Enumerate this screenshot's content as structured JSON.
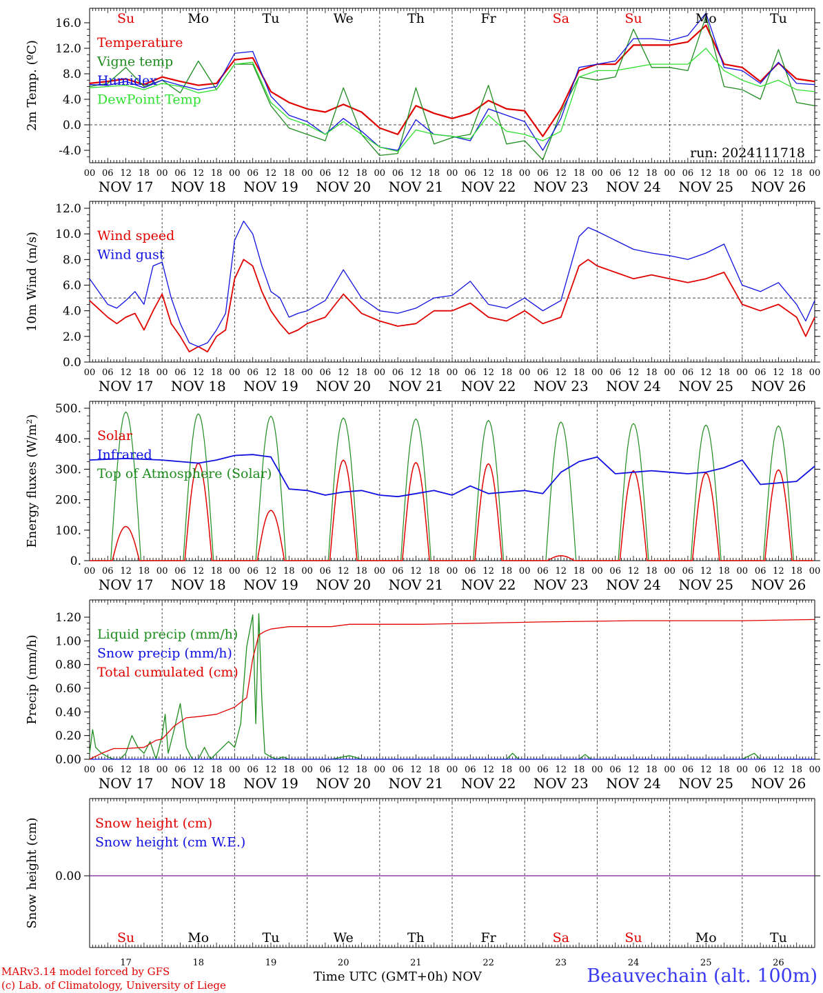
{
  "run_label": "run: 2024111718",
  "weekdays": [
    "Su",
    "Mo",
    "Tu",
    "We",
    "Th",
    "Fr",
    "Sa",
    "Su",
    "Mo",
    "Tu"
  ],
  "weekday_colors": [
    "#e00000",
    "#000000",
    "#000000",
    "#000000",
    "#000000",
    "#000000",
    "#e00000",
    "#e00000",
    "#000000",
    "#000000"
  ],
  "date_labels": [
    "NOV 17",
    "NOV 18",
    "NOV 19",
    "NOV 20",
    "NOV 21",
    "NOV 22",
    "NOV 23",
    "NOV 24",
    "NOV 25",
    "NOV 26"
  ],
  "day_numbers": [
    "17",
    "18",
    "19",
    "20",
    "21",
    "22",
    "23",
    "24",
    "25",
    "26"
  ],
  "hour_ticks": [
    "00",
    "06",
    "12",
    "18"
  ],
  "footer": {
    "credit_line1": "MARv3.14 model forced by GFS",
    "credit_line2": "(c) Lab. of Climatology, University of Liege",
    "x_title": "Time UTC (GMT+0h) NOV",
    "station": "Beauvechain (alt. 100m)"
  },
  "colors": {
    "red": "#e00000",
    "green": "#1e8c1e",
    "blue": "#1010e0",
    "lightgreen": "#30e030",
    "purple": "#7a1a9a"
  },
  "chart_data": [
    {
      "id": "temp",
      "type": "line",
      "ylabel": "2m Temp. (ºC)",
      "ylim": [
        -6,
        18
      ],
      "yticks": [
        -4,
        0,
        4,
        8,
        12,
        16
      ],
      "ytick_labels": [
        "-4.0",
        "0.0",
        "4.0",
        "8.0",
        "12.0",
        "16.0"
      ],
      "dashed_y": 0,
      "series": [
        {
          "name": "Temperature",
          "color": "#e00000",
          "x": [
            0,
            6,
            12,
            18,
            24,
            30,
            36,
            42,
            48,
            54,
            60,
            66,
            72,
            78,
            84,
            90,
            96,
            102,
            108,
            114,
            120,
            126,
            132,
            138,
            144,
            150,
            156,
            162,
            168,
            174,
            180,
            186,
            192,
            198,
            204,
            210,
            216,
            222,
            228,
            234,
            240
          ],
          "y": [
            6.5,
            6.8,
            7.2,
            6.3,
            7.5,
            6.8,
            6.2,
            6.5,
            10.2,
            10.5,
            5.2,
            3.5,
            2.5,
            2.0,
            3.2,
            2.0,
            -0.5,
            -1.5,
            3.0,
            1.8,
            1.0,
            1.8,
            3.8,
            2.5,
            2.2,
            -1.8,
            2.5,
            8.5,
            9.5,
            9.5,
            12.5,
            12.5,
            12.5,
            13.0,
            15.6,
            9.5,
            9.0,
            6.8,
            9.7,
            7.2,
            6.8
          ]
        },
        {
          "name": "Vigne temp",
          "color": "#1e8c1e",
          "x": [
            0,
            6,
            12,
            18,
            24,
            30,
            36,
            42,
            48,
            54,
            60,
            66,
            72,
            78,
            84,
            90,
            96,
            102,
            108,
            114,
            120,
            126,
            132,
            138,
            144,
            150,
            156,
            162,
            168,
            174,
            180,
            186,
            192,
            198,
            204,
            210,
            216,
            222,
            228,
            234,
            240
          ],
          "y": [
            6.0,
            6.5,
            9.0,
            6.0,
            7.0,
            5.0,
            10.0,
            5.5,
            9.5,
            9.5,
            3.0,
            -0.5,
            -1.5,
            -2.5,
            5.8,
            -1.5,
            -4.8,
            -4.5,
            5.8,
            -3.0,
            -2.0,
            -1.5,
            6.2,
            -3.0,
            -2.5,
            -5.5,
            2.0,
            7.5,
            7.0,
            7.5,
            15.0,
            9.0,
            9.0,
            8.5,
            17.0,
            6.0,
            5.5,
            4.0,
            11.8,
            3.5,
            3.0
          ]
        },
        {
          "name": "Humidex",
          "color": "#1010e0",
          "x": [
            0,
            6,
            12,
            18,
            24,
            30,
            36,
            42,
            48,
            54,
            60,
            66,
            72,
            78,
            84,
            90,
            96,
            102,
            108,
            114,
            120,
            126,
            132,
            138,
            144,
            150,
            156,
            162,
            168,
            174,
            180,
            186,
            192,
            198,
            204,
            210,
            216,
            222,
            228,
            234,
            240
          ],
          "y": [
            6.3,
            6.2,
            6.8,
            5.8,
            7.0,
            6.2,
            5.5,
            6.0,
            11.2,
            11.5,
            4.5,
            1.5,
            0.5,
            -1.5,
            1.0,
            -1.0,
            -3.5,
            -4.0,
            0.8,
            -1.5,
            -1.8,
            -2.5,
            2.5,
            1.5,
            0.5,
            -4.0,
            1.0,
            9.0,
            9.5,
            10.0,
            13.5,
            13.5,
            13.2,
            14.0,
            17.5,
            9.0,
            8.5,
            6.5,
            9.8,
            6.5,
            6.3
          ]
        },
        {
          "name": "DewPoint Temp",
          "color": "#30e030",
          "x": [
            0,
            6,
            12,
            18,
            24,
            30,
            36,
            42,
            48,
            54,
            60,
            66,
            72,
            78,
            84,
            90,
            96,
            102,
            108,
            114,
            120,
            126,
            132,
            138,
            144,
            150,
            156,
            162,
            168,
            174,
            180,
            186,
            192,
            198,
            204,
            210,
            216,
            222,
            228,
            234,
            240
          ],
          "y": [
            5.8,
            6.0,
            6.2,
            5.5,
            6.5,
            6.0,
            5.0,
            5.5,
            9.5,
            9.8,
            3.5,
            1.0,
            0.0,
            -1.5,
            0.5,
            -1.5,
            -3.5,
            -4.2,
            -0.8,
            -1.5,
            -1.8,
            -2.2,
            1.5,
            -1.0,
            -1.5,
            -2.5,
            -1.0,
            7.5,
            8.5,
            8.5,
            9.0,
            9.5,
            9.5,
            9.5,
            12.0,
            8.5,
            7.0,
            6.0,
            7.0,
            5.5,
            5.2
          ]
        }
      ],
      "legend": [
        "Temperature",
        "Vigne temp",
        "Humidex",
        "DewPoint Temp"
      ],
      "legend_colors": [
        "#e00000",
        "#1e8c1e",
        "#1010e0",
        "#30e030"
      ]
    },
    {
      "id": "wind",
      "type": "line",
      "ylabel": "10m Wind (m/s)",
      "ylim": [
        0,
        12
      ],
      "yticks": [
        0,
        2,
        4,
        6,
        8,
        10,
        12
      ],
      "ytick_labels": [
        "0.0",
        "2.0",
        "4.0",
        "6.0",
        "8.0",
        "10.0",
        "12.0"
      ],
      "dashed_y": 5,
      "series": [
        {
          "name": "Wind speed",
          "color": "#e00000",
          "x": [
            0,
            6,
            9,
            12,
            15,
            18,
            21,
            24,
            27,
            30,
            33,
            36,
            39,
            42,
            45,
            48,
            51,
            54,
            57,
            60,
            63,
            66,
            69,
            72,
            78,
            84,
            90,
            96,
            102,
            108,
            114,
            120,
            126,
            132,
            138,
            144,
            150,
            156,
            162,
            165,
            168,
            174,
            180,
            186,
            192,
            198,
            204,
            210,
            216,
            222,
            228,
            234,
            237,
            240
          ],
          "y": [
            4.8,
            3.5,
            3.0,
            3.5,
            3.8,
            2.5,
            4.0,
            5.3,
            3.0,
            2.0,
            0.8,
            1.2,
            0.8,
            2.0,
            2.5,
            6.5,
            8.0,
            7.5,
            5.5,
            4.0,
            3.0,
            2.2,
            2.5,
            3.0,
            3.5,
            5.3,
            3.8,
            3.2,
            2.8,
            3.0,
            4.0,
            4.0,
            4.6,
            3.5,
            3.2,
            4.0,
            3.0,
            3.5,
            7.5,
            8.0,
            7.5,
            7.0,
            6.5,
            6.8,
            6.5,
            6.2,
            6.5,
            7.0,
            4.5,
            4.0,
            4.5,
            3.5,
            2.0,
            3.5
          ]
        },
        {
          "name": "Wind gust",
          "color": "#1010e0",
          "x": [
            0,
            6,
            9,
            12,
            15,
            18,
            21,
            24,
            27,
            30,
            33,
            36,
            39,
            42,
            45,
            48,
            51,
            54,
            57,
            60,
            63,
            66,
            69,
            72,
            78,
            84,
            90,
            96,
            102,
            108,
            114,
            120,
            126,
            132,
            138,
            144,
            150,
            156,
            162,
            165,
            168,
            174,
            180,
            186,
            192,
            198,
            204,
            210,
            216,
            222,
            228,
            234,
            237,
            240
          ],
          "y": [
            6.5,
            4.5,
            4.2,
            4.8,
            5.5,
            4.5,
            7.5,
            7.8,
            5.0,
            3.0,
            1.5,
            1.2,
            1.5,
            2.5,
            3.8,
            9.5,
            11.0,
            10.0,
            7.5,
            5.5,
            5.0,
            3.5,
            3.8,
            4.0,
            4.8,
            7.2,
            5.0,
            4.0,
            3.8,
            4.2,
            5.0,
            5.2,
            6.3,
            4.5,
            4.2,
            5.0,
            4.0,
            4.8,
            9.8,
            10.5,
            10.2,
            9.5,
            8.8,
            8.5,
            8.3,
            8.0,
            8.5,
            9.2,
            6.0,
            5.5,
            6.2,
            4.5,
            3.2,
            4.8
          ]
        }
      ],
      "legend": [
        "Wind speed",
        "Wind gust"
      ],
      "legend_colors": [
        "#e00000",
        "#1010e0"
      ]
    },
    {
      "id": "energy",
      "type": "line",
      "ylabel": "Energy fluxes (W/m²)",
      "ylim": [
        0,
        500
      ],
      "yticks": [
        0,
        100,
        200,
        300,
        400,
        500
      ],
      "ytick_labels": [
        "0.",
        "100.",
        "200.",
        "300.",
        "400.",
        "500."
      ],
      "dashed_y": null,
      "diurnal": {
        "toa_peaks": [
          488,
          482,
          474,
          468,
          465,
          460,
          455,
          450,
          445,
          442
        ],
        "solar_peaks": [
          112,
          320,
          165,
          330,
          322,
          318,
          16,
          295,
          288,
          298
        ],
        "peak_hour": 12,
        "toa_halfwidth_h": 5,
        "solar_halfwidth_h": 4.5
      },
      "series": [
        {
          "name": "Infrared",
          "color": "#1010e0",
          "x": [
            0,
            12,
            24,
            30,
            36,
            42,
            48,
            54,
            60,
            66,
            72,
            78,
            84,
            90,
            96,
            102,
            108,
            114,
            120,
            126,
            132,
            138,
            144,
            150,
            156,
            162,
            168,
            174,
            180,
            186,
            192,
            198,
            204,
            210,
            216,
            222,
            228,
            234,
            240
          ],
          "y": [
            330,
            335,
            330,
            325,
            320,
            330,
            345,
            348,
            340,
            235,
            230,
            215,
            225,
            230,
            215,
            210,
            220,
            230,
            215,
            245,
            220,
            225,
            230,
            220,
            290,
            325,
            340,
            285,
            290,
            295,
            290,
            285,
            290,
            305,
            330,
            250,
            255,
            260,
            310
          ]
        }
      ],
      "solar_series_name": "Solar",
      "toa_series_name": "Top of Atmosphere (Solar)",
      "legend": [
        "Solar",
        "Infrared",
        "Top of Atmosphere (Solar)"
      ],
      "legend_colors": [
        "#e00000",
        "#1010e0",
        "#1e8c1e"
      ]
    },
    {
      "id": "precip",
      "type": "line",
      "ylabel": "Precip (mm/h)",
      "ylim": [
        0,
        1.3
      ],
      "yticks": [
        0,
        0.2,
        0.4,
        0.6,
        0.8,
        1.0,
        1.2
      ],
      "ytick_labels": [
        "0.00",
        "0.20",
        "0.40",
        "0.60",
        "0.80",
        "1.00",
        "1.20"
      ],
      "dashed_y": null,
      "series": [
        {
          "name": "Liquid precip (mm/h)",
          "color": "#1e8c1e",
          "x": [
            0,
            1,
            2,
            4,
            6,
            8,
            10,
            12,
            14,
            16,
            18,
            20,
            22,
            24,
            25,
            26,
            28,
            30,
            32,
            34,
            36,
            38,
            40,
            42,
            44,
            46,
            48,
            50,
            52,
            54,
            55,
            56,
            57,
            58,
            60,
            62,
            64,
            66,
            72,
            80,
            86,
            90,
            96,
            120,
            138,
            140,
            142,
            144,
            150,
            162,
            164,
            166,
            168,
            180,
            216,
            220,
            222,
            240
          ],
          "y": [
            0.05,
            0.25,
            0.1,
            0.05,
            0.02,
            0.0,
            0.0,
            0.05,
            0.2,
            0.1,
            0.05,
            0.15,
            0.0,
            0.2,
            0.38,
            0.05,
            0.25,
            0.47,
            0.1,
            0.0,
            0.0,
            0.1,
            0.0,
            0.05,
            0.1,
            0.15,
            0.1,
            0.3,
            0.95,
            1.22,
            0.3,
            1.23,
            0.5,
            0.05,
            0.02,
            0.0,
            0.02,
            0.0,
            0.0,
            0.0,
            0.03,
            0.0,
            0.0,
            0.0,
            0.0,
            0.05,
            0.0,
            0.0,
            0.0,
            0.0,
            0.04,
            0.0,
            0.0,
            0.0,
            0.0,
            0.05,
            0.0,
            0.0
          ]
        },
        {
          "name": "Snow precip (mm/h)",
          "color": "#1010e0",
          "x": [
            0,
            240
          ],
          "y": [
            0,
            0
          ]
        },
        {
          "name": "Total cumulated (cm)",
          "color": "#e00000",
          "x": [
            0,
            4,
            8,
            12,
            18,
            22,
            24,
            28,
            32,
            36,
            42,
            48,
            52,
            54,
            56,
            58,
            60,
            66,
            72,
            80,
            86,
            96,
            110,
            130,
            150,
            180,
            216,
            240
          ],
          "y": [
            0.0,
            0.05,
            0.09,
            0.09,
            0.1,
            0.16,
            0.17,
            0.28,
            0.35,
            0.36,
            0.38,
            0.44,
            0.52,
            0.85,
            1.05,
            1.08,
            1.1,
            1.12,
            1.12,
            1.12,
            1.14,
            1.14,
            1.14,
            1.15,
            1.16,
            1.17,
            1.17,
            1.18
          ]
        }
      ],
      "legend": [
        "Liquid precip (mm/h)",
        "Snow precip (mm/h)",
        "Total cumulated (cm)"
      ],
      "legend_colors": [
        "#1e8c1e",
        "#1010e0",
        "#e00000"
      ]
    },
    {
      "id": "snow",
      "type": "line",
      "ylabel": "Snow height (cm)",
      "ylim": [
        -1,
        1
      ],
      "yticks": [
        0
      ],
      "ytick_labels": [
        "0.00"
      ],
      "dashed_y": null,
      "series": [
        {
          "name": "Snow height (cm)",
          "color": "#7a1a9a",
          "x": [
            0,
            240
          ],
          "y": [
            0,
            0
          ]
        }
      ],
      "legend": [
        "Snow height (cm)",
        "Snow height (cm W.E.)"
      ],
      "legend_colors": [
        "#e00000",
        "#1010e0"
      ]
    }
  ]
}
